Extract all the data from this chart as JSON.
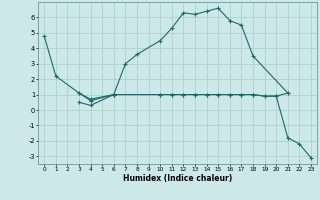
{
  "xlabel": "Humidex (Indice chaleur)",
  "background_color": "#cce8e8",
  "grid_color": "#aacccc",
  "line_color": "#1a6b6b",
  "xlim": [
    -0.5,
    23.5
  ],
  "ylim": [
    -3.5,
    7.0
  ],
  "yticks": [
    -3,
    -2,
    -1,
    0,
    1,
    2,
    3,
    4,
    5,
    6
  ],
  "xticks": [
    0,
    1,
    2,
    3,
    4,
    5,
    6,
    7,
    8,
    9,
    10,
    11,
    12,
    13,
    14,
    15,
    16,
    17,
    18,
    19,
    20,
    21,
    22,
    23
  ],
  "series1_x": [
    0,
    1,
    3,
    4,
    6,
    7,
    8,
    10,
    11,
    12,
    13,
    14,
    15,
    16,
    17,
    18,
    21
  ],
  "series1_y": [
    4.8,
    2.2,
    1.1,
    0.7,
    1.0,
    3.0,
    3.6,
    4.5,
    5.3,
    6.3,
    6.2,
    6.4,
    6.6,
    5.8,
    5.5,
    3.5,
    1.1
  ],
  "series2_x": [
    3,
    4,
    6,
    10,
    11,
    12,
    13,
    14,
    15,
    16,
    17,
    18,
    19,
    20,
    21
  ],
  "series2_y": [
    1.1,
    0.6,
    1.0,
    1.0,
    1.0,
    1.0,
    1.0,
    1.0,
    1.0,
    1.0,
    1.0,
    1.0,
    0.9,
    0.9,
    1.1
  ],
  "series3_x": [
    3,
    4,
    6,
    10,
    11,
    12,
    13,
    14,
    15,
    16,
    17,
    18,
    19,
    20,
    21,
    22,
    23
  ],
  "series3_y": [
    0.5,
    0.3,
    1.0,
    1.0,
    1.0,
    1.0,
    1.0,
    1.0,
    1.0,
    1.0,
    1.0,
    1.0,
    0.9,
    0.9,
    -1.8,
    -2.2,
    -3.1
  ]
}
